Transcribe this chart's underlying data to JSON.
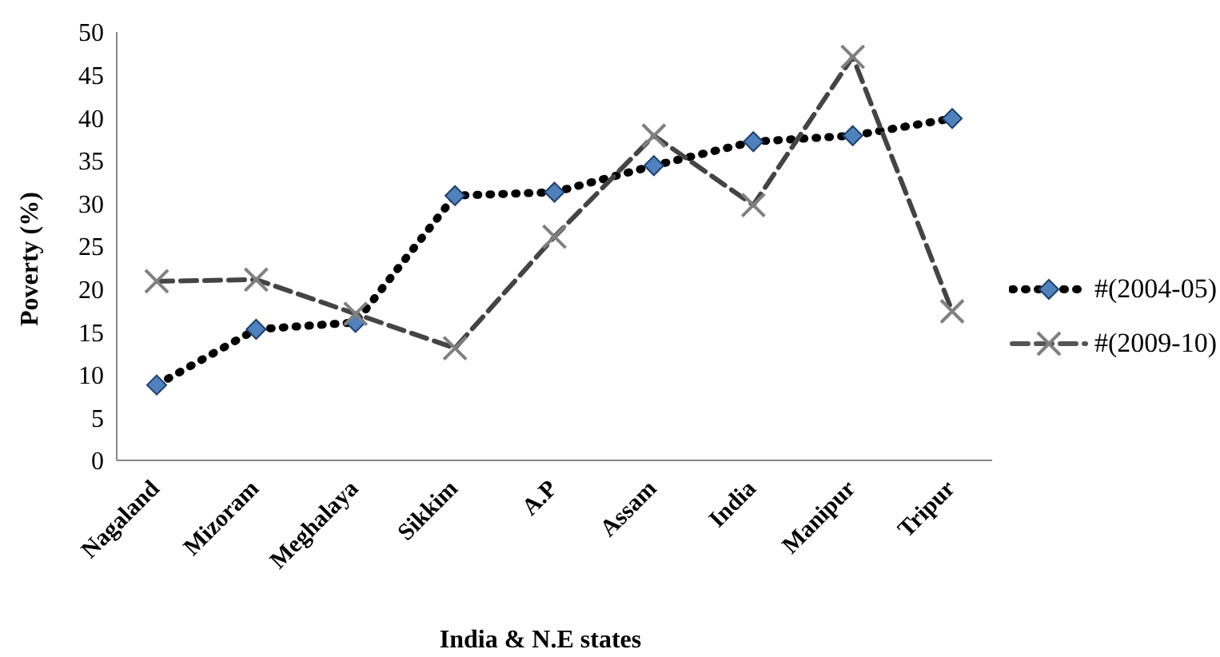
{
  "chart_data": {
    "type": "line",
    "xlabel": "India  & N.E states",
    "ylabel": "Poverty (%)",
    "categories": [
      "Nagaland",
      "Mizoram",
      "Meghalaya",
      "Sikkim",
      "A.P",
      "Assam",
      "India",
      "Manipur",
      "Tripur"
    ],
    "series": [
      {
        "name": "#(2004-05)",
        "color": "#4f81bd",
        "marker": "diamond",
        "line_style": "dotted",
        "values": [
          8.8,
          15.3,
          16.1,
          30.9,
          31.3,
          34.4,
          37.2,
          37.9,
          39.9
        ]
      },
      {
        "name": "#(2009-10)",
        "color": "#808080",
        "marker": "cross",
        "line_style": "dashed",
        "values": [
          20.9,
          21.1,
          17.1,
          13.1,
          26.1,
          37.9,
          29.8,
          47.1,
          17.4
        ]
      }
    ],
    "ylim": [
      0,
      50
    ],
    "yticks": [
      0,
      5,
      10,
      15,
      20,
      25,
      30,
      35,
      40,
      45,
      50
    ],
    "grid": false,
    "legend": "right"
  }
}
